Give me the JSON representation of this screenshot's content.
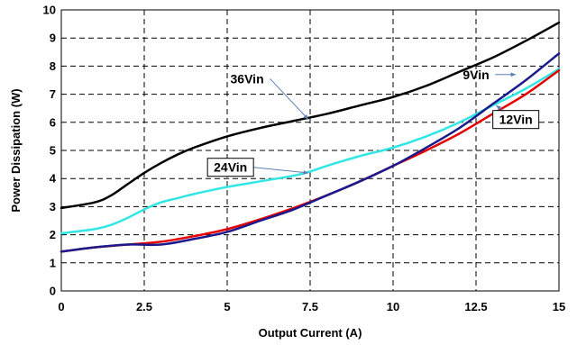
{
  "chart_data": {
    "type": "line",
    "title": "",
    "xlabel": "Output Current (A)",
    "ylabel": "Power Dissipation (W)",
    "xlim": [
      0,
      15
    ],
    "ylim": [
      0,
      10
    ],
    "x_ticks": [
      "0",
      "2.5",
      "5",
      "7.5",
      "10",
      "12.5",
      "15"
    ],
    "y_ticks": [
      "0",
      "1",
      "2",
      "3",
      "4",
      "5",
      "6",
      "7",
      "8",
      "9",
      "10"
    ],
    "grid": true,
    "series": [
      {
        "name": "36Vin",
        "color": "#000000",
        "x": [
          0,
          1,
          1.5,
          2,
          2.5,
          3,
          3.5,
          4,
          5,
          6,
          7,
          8,
          9,
          10,
          11,
          12,
          13,
          14,
          15
        ],
        "y": [
          2.95,
          3.15,
          3.4,
          3.8,
          4.2,
          4.55,
          4.85,
          5.1,
          5.5,
          5.8,
          6.05,
          6.3,
          6.6,
          6.9,
          7.3,
          7.8,
          8.3,
          8.9,
          9.55
        ]
      },
      {
        "name": "24Vin",
        "color": "#33e6e6",
        "x": [
          0,
          1,
          1.5,
          2,
          2.5,
          3,
          3.5,
          4,
          5,
          6,
          7,
          7.5,
          8,
          9,
          10,
          11,
          12,
          13,
          14,
          15
        ],
        "y": [
          2.05,
          2.2,
          2.35,
          2.6,
          2.9,
          3.15,
          3.3,
          3.45,
          3.7,
          3.9,
          4.1,
          4.25,
          4.45,
          4.8,
          5.1,
          5.5,
          6.0,
          6.6,
          7.2,
          7.9
        ]
      },
      {
        "name": "12Vin",
        "color": "#e60000",
        "x": [
          0,
          1,
          2,
          3,
          4,
          5,
          6,
          7,
          8,
          9,
          10,
          11,
          12,
          13,
          14,
          15
        ],
        "y": [
          1.4,
          1.55,
          1.65,
          1.75,
          1.95,
          2.2,
          2.55,
          2.95,
          3.4,
          3.9,
          4.45,
          5.0,
          5.6,
          6.3,
          7.0,
          7.85
        ]
      },
      {
        "name": "9Vin",
        "color": "#1a1a8c",
        "x": [
          0,
          1,
          2,
          3,
          4,
          5,
          6,
          7,
          8,
          9,
          10,
          11,
          12,
          13,
          14,
          15
        ],
        "y": [
          1.4,
          1.55,
          1.65,
          1.65,
          1.85,
          2.1,
          2.5,
          2.9,
          3.4,
          3.9,
          4.45,
          5.1,
          5.8,
          6.65,
          7.5,
          8.45
        ]
      }
    ],
    "annotations": [
      {
        "series": "36Vin",
        "text": "36Vin",
        "boxed": false,
        "label_at": [
          5.6,
          7.55
        ],
        "points_to": [
          7.45,
          6.1
        ]
      },
      {
        "series": "24Vin",
        "text": "24Vin",
        "boxed": true,
        "label_at": [
          5.1,
          4.4
        ],
        "points_to": [
          7.45,
          4.2
        ]
      },
      {
        "series": "9Vin",
        "text": "9Vin",
        "boxed": false,
        "label_at": [
          12.5,
          7.7
        ],
        "points_to": [
          13.7,
          7.7
        ]
      },
      {
        "series": "12Vin",
        "text": "12Vin",
        "boxed": true,
        "label_at": [
          13.7,
          6.1
        ],
        "points_to": [
          13.1,
          6.6
        ]
      }
    ]
  }
}
